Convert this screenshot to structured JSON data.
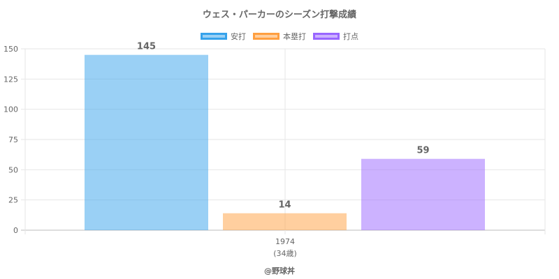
{
  "colors": {
    "hits_fill": "rgba(54,162,235,0.5)",
    "hits_border": "#36a2eb",
    "hr_fill": "rgba(255,159,64,0.5)",
    "hr_border": "#ff9f40",
    "rbi_fill": "rgba(153,102,255,0.5)",
    "rbi_border": "#9966ff"
  },
  "credit": "@野球丼",
  "chart_data": {
    "type": "bar",
    "title": "ウェス・パーカーのシーズン打撃成績",
    "categories": [
      "1974"
    ],
    "category_sublabels": [
      "(34歳)"
    ],
    "series": [
      {
        "name": "安打",
        "values": [
          145
        ],
        "value_labels": [
          "145"
        ]
      },
      {
        "name": "本塁打",
        "values": [
          14
        ],
        "value_labels": [
          "14"
        ]
      },
      {
        "name": "打点",
        "values": [
          59
        ],
        "value_labels": [
          "59"
        ]
      }
    ],
    "ylim": [
      0,
      150
    ],
    "yticks": [
      "0",
      "25",
      "50",
      "75",
      "100",
      "125",
      "150"
    ],
    "grid": true,
    "legend_position": "top"
  }
}
